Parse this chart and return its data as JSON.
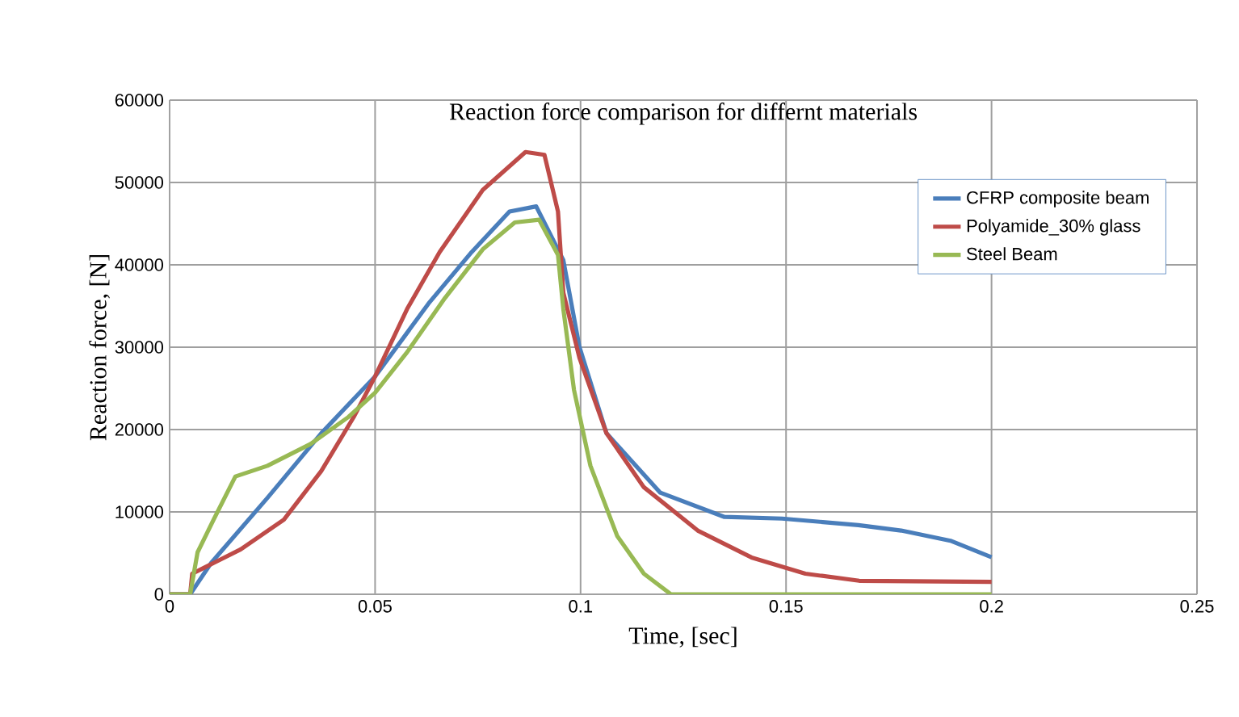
{
  "chart_data": {
    "type": "line",
    "title": "Reaction force comparison for differnt materials",
    "xlabel": "Time, [sec]",
    "ylabel": "Reaction force, [N]",
    "xlim": [
      0,
      0.25
    ],
    "xticks": [
      0,
      0.05,
      0.1,
      0.15,
      0.2,
      0.25
    ],
    "ylim": [
      0,
      60000
    ],
    "yticks": [
      0,
      10000,
      20000,
      30000,
      40000,
      50000,
      60000
    ],
    "grid": true,
    "legend": "top right",
    "marker": "none",
    "line_style": "solid",
    "series": [
      {
        "name": "CFRP composite beam",
        "color": "#4a7ebb",
        "x": [
          0,
          0.005,
          0.0101,
          0.0238,
          0.0369,
          0.05,
          0.063,
          0.0735,
          0.0827,
          0.0892,
          0.0958,
          0.0997,
          0.1063,
          0.1194,
          0.135,
          0.149,
          0.1676,
          0.178,
          0.19,
          0.2
        ],
        "values": [
          0,
          0,
          3800,
          11700,
          19550,
          26450,
          35300,
          41550,
          46470,
          47100,
          40560,
          30070,
          19550,
          12340,
          9390,
          9190,
          8400,
          7740,
          6500,
          4500
        ]
      },
      {
        "name": "Polyamide_30% glass",
        "color": "#be4b48",
        "x": [
          0,
          0.005,
          0.0055,
          0.0107,
          0.0173,
          0.0278,
          0.0369,
          0.0448,
          0.05,
          0.0578,
          0.0657,
          0.0762,
          0.0866,
          0.0912,
          0.0945,
          0.0958,
          0.0997,
          0.1063,
          0.1154,
          0.1285,
          0.1416,
          0.1547,
          0.1678,
          0.2
        ],
        "values": [
          0,
          0,
          2500,
          3800,
          5450,
          9060,
          14960,
          21520,
          26450,
          34650,
          41550,
          49090,
          53700,
          53360,
          46470,
          36620,
          28750,
          19550,
          13000,
          7740,
          4470,
          2500,
          1640,
          1500
        ]
      },
      {
        "name": "Steel Beam",
        "color": "#98b954",
        "x": [
          0,
          0.005,
          0.0068,
          0.0107,
          0.016,
          0.0238,
          0.0343,
          0.0435,
          0.05,
          0.0578,
          0.067,
          0.0762,
          0.084,
          0.0899,
          0.0945,
          0.0958,
          0.0984,
          0.1024,
          0.1089,
          0.1154,
          0.122,
          0.2
        ],
        "values": [
          0,
          0,
          5100,
          9060,
          14300,
          15600,
          18250,
          21520,
          24470,
          29400,
          35970,
          41880,
          45150,
          45480,
          41210,
          34650,
          24810,
          15600,
          7090,
          2500,
          0,
          0
        ]
      }
    ]
  }
}
